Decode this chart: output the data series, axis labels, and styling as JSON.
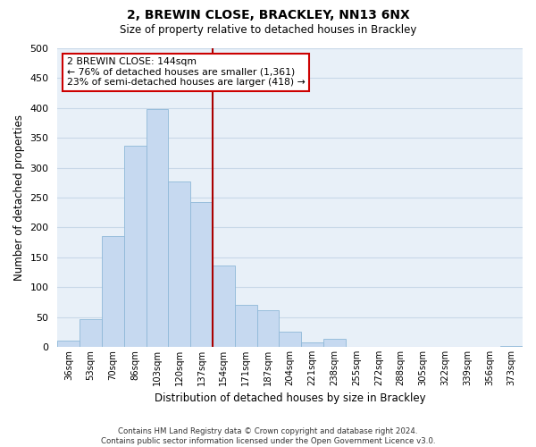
{
  "title": "2, BREWIN CLOSE, BRACKLEY, NN13 6NX",
  "subtitle": "Size of property relative to detached houses in Brackley",
  "xlabel": "Distribution of detached houses by size in Brackley",
  "ylabel": "Number of detached properties",
  "bar_color": "#c6d9f0",
  "bar_edge_color": "#8fb8d8",
  "categories": [
    "36sqm",
    "53sqm",
    "70sqm",
    "86sqm",
    "103sqm",
    "120sqm",
    "137sqm",
    "154sqm",
    "171sqm",
    "187sqm",
    "204sqm",
    "221sqm",
    "238sqm",
    "255sqm",
    "272sqm",
    "288sqm",
    "305sqm",
    "322sqm",
    "339sqm",
    "356sqm",
    "373sqm"
  ],
  "values": [
    10,
    46,
    185,
    337,
    398,
    277,
    242,
    136,
    70,
    62,
    25,
    7,
    13,
    0,
    0,
    0,
    0,
    0,
    0,
    0,
    2
  ],
  "ylim": [
    0,
    500
  ],
  "yticks": [
    0,
    50,
    100,
    150,
    200,
    250,
    300,
    350,
    400,
    450,
    500
  ],
  "vline_color": "#aa0000",
  "annotation_title": "2 BREWIN CLOSE: 144sqm",
  "annotation_line1": "← 76% of detached houses are smaller (1,361)",
  "annotation_line2": "23% of semi-detached houses are larger (418) →",
  "annotation_box_edge": "#cc0000",
  "footer_line1": "Contains HM Land Registry data © Crown copyright and database right 2024.",
  "footer_line2": "Contains public sector information licensed under the Open Government Licence v3.0.",
  "grid_color": "#c8d8e8",
  "background_color": "#e8f0f8"
}
